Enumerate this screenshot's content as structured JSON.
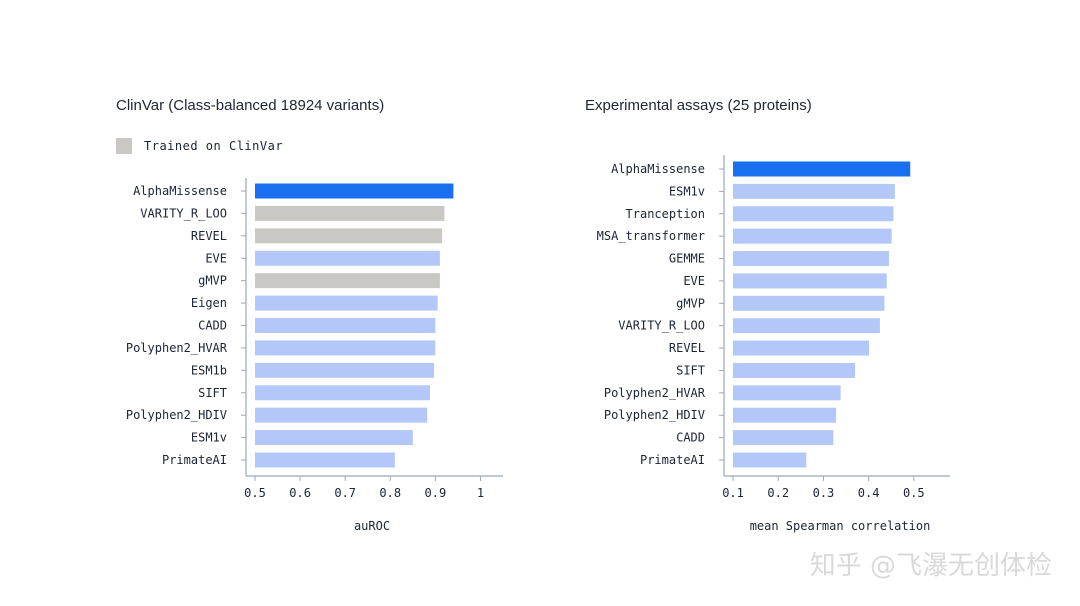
{
  "colors": {
    "highlight": "#1a6ef0",
    "default": "#b3c8f8",
    "trained_on_clinvar": "#c9c8c5",
    "axis": "#9aa7bd",
    "text": "#1d2433"
  },
  "legend": {
    "label": "Trained on ClinVar",
    "color": "#c9c8c5"
  },
  "watermark": "知乎 @飞瀑无创体检",
  "chart_data": [
    {
      "type": "bar",
      "orientation": "horizontal",
      "title": "ClinVar (Class-balanced 18924 variants)",
      "xlabel": "auROC",
      "ylabel": "",
      "xlim": [
        0.48,
        1.05
      ],
      "xticks": [
        0.5,
        0.6,
        0.7,
        0.8,
        0.9,
        1
      ],
      "xtick_labels": [
        "0.5",
        "0.6",
        "0.7",
        "0.8",
        "0.9",
        "1"
      ],
      "categories": [
        "AlphaMissense",
        "VARITY_R_LOO",
        "REVEL",
        "EVE",
        "gMVP",
        "Eigen",
        "CADD",
        "Polyphen2_HVAR",
        "ESM1b",
        "SIFT",
        "Polyphen2_HDIV",
        "ESM1v",
        "PrimateAI"
      ],
      "values": [
        0.94,
        0.92,
        0.915,
        0.91,
        0.91,
        0.905,
        0.9,
        0.9,
        0.897,
        0.888,
        0.882,
        0.85,
        0.81
      ],
      "groups": [
        "highlight",
        "trained_on_clinvar",
        "trained_on_clinvar",
        "default",
        "trained_on_clinvar",
        "default",
        "default",
        "default",
        "default",
        "default",
        "default",
        "default",
        "default"
      ],
      "grid": false
    },
    {
      "type": "bar",
      "orientation": "horizontal",
      "title": "Experimental assays (25 proteins)",
      "xlabel": "mean Spearman correlation",
      "ylabel": "",
      "xlim": [
        0.08,
        0.58
      ],
      "xticks": [
        0.1,
        0.2,
        0.3,
        0.4,
        0.5
      ],
      "xtick_labels": [
        "0.1",
        "0.2",
        "0.3",
        "0.4",
        "0.5"
      ],
      "categories": [
        "AlphaMissense",
        "ESM1v",
        "Tranception",
        "MSA_transformer",
        "GEMME",
        "EVE",
        "gMVP",
        "VARITY_R_LOO",
        "REVEL",
        "SIFT",
        "Polyphen2_HVAR",
        "Polyphen2_HDIV",
        "CADD",
        "PrimateAI"
      ],
      "values": [
        0.492,
        0.458,
        0.455,
        0.451,
        0.445,
        0.44,
        0.435,
        0.425,
        0.401,
        0.37,
        0.338,
        0.328,
        0.322,
        0.262
      ],
      "groups": [
        "highlight",
        "default",
        "default",
        "default",
        "default",
        "default",
        "default",
        "default",
        "default",
        "default",
        "default",
        "default",
        "default",
        "default"
      ],
      "grid": false
    }
  ]
}
